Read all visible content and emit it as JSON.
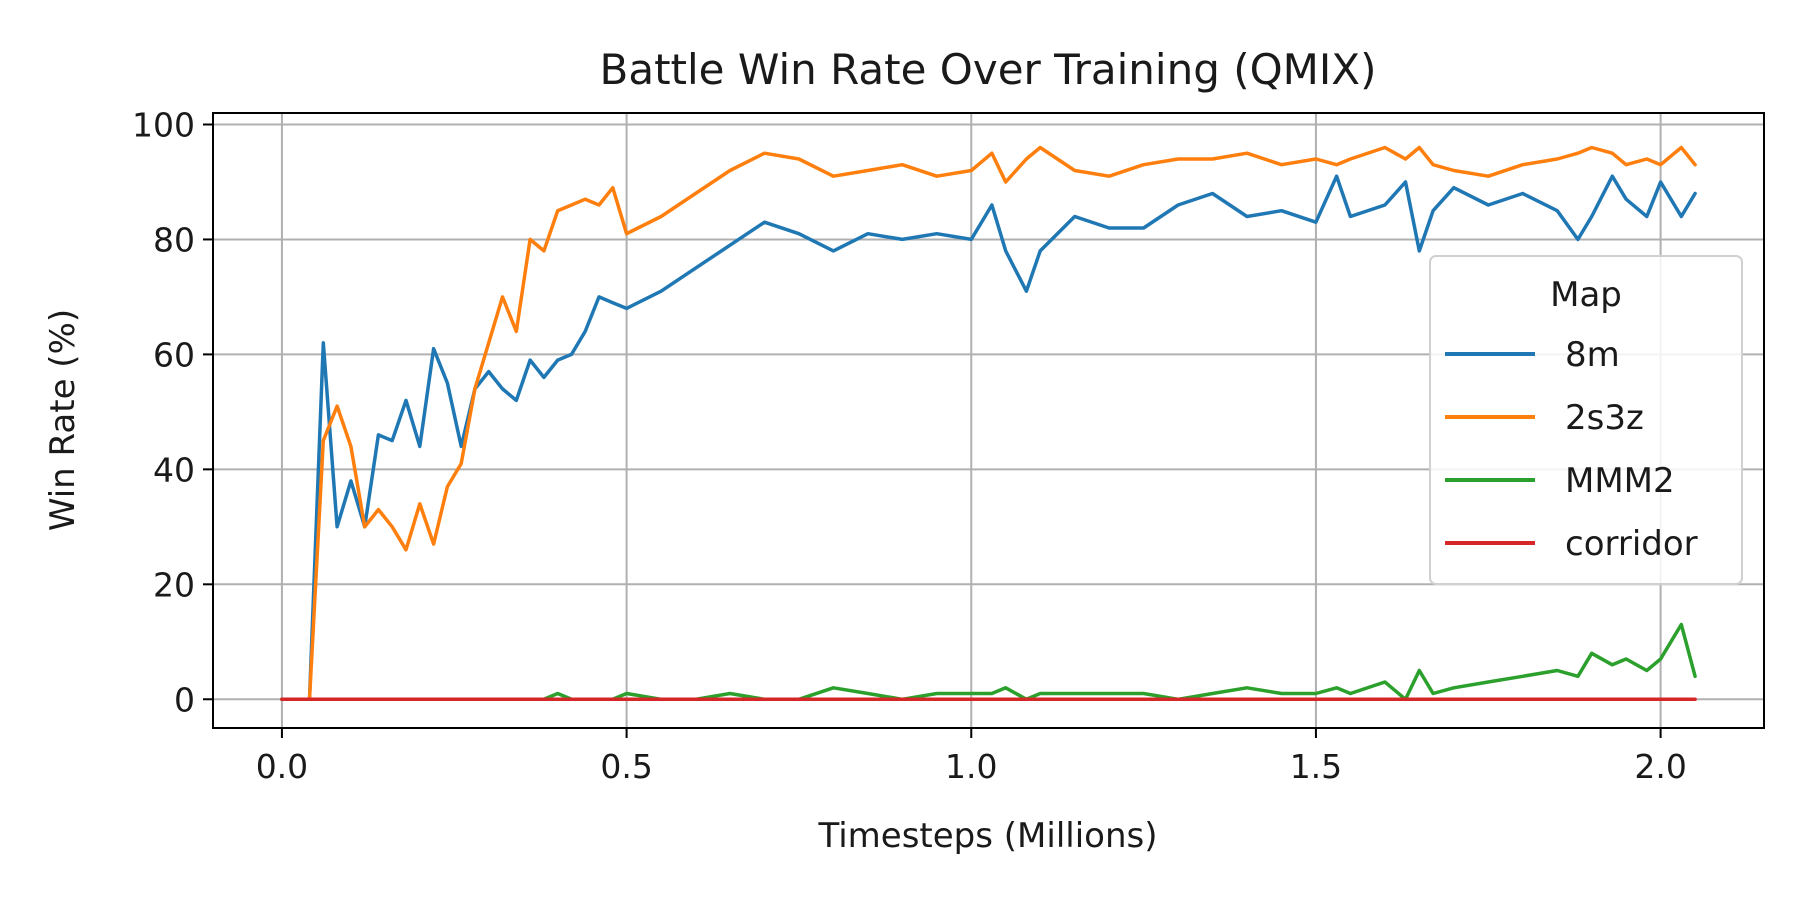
{
  "chart_data": {
    "type": "line",
    "title": "Battle Win Rate Over Training (QMIX)",
    "xlabel": "Timesteps (Millions)",
    "ylabel": "Win Rate (%)",
    "xlim": [
      -0.1,
      2.15
    ],
    "ylim": [
      -5,
      102
    ],
    "xticks": [
      0.0,
      0.5,
      1.0,
      1.5,
      2.0
    ],
    "xtick_labels": [
      "0.0",
      "0.5",
      "1.0",
      "1.5",
      "2.0"
    ],
    "yticks": [
      0,
      20,
      40,
      60,
      80,
      100
    ],
    "ytick_labels": [
      "0",
      "20",
      "40",
      "60",
      "80",
      "100"
    ],
    "grid": true,
    "legend": {
      "title": "Map",
      "position": "center-right"
    },
    "x": [
      0.0,
      0.04,
      0.06,
      0.08,
      0.1,
      0.12,
      0.14,
      0.16,
      0.18,
      0.2,
      0.22,
      0.24,
      0.26,
      0.28,
      0.3,
      0.32,
      0.34,
      0.36,
      0.38,
      0.4,
      0.42,
      0.44,
      0.46,
      0.48,
      0.5,
      0.55,
      0.6,
      0.65,
      0.7,
      0.75,
      0.8,
      0.85,
      0.9,
      0.95,
      1.0,
      1.03,
      1.05,
      1.08,
      1.1,
      1.15,
      1.2,
      1.25,
      1.3,
      1.35,
      1.4,
      1.45,
      1.5,
      1.53,
      1.55,
      1.6,
      1.63,
      1.65,
      1.67,
      1.7,
      1.75,
      1.8,
      1.85,
      1.88,
      1.9,
      1.93,
      1.95,
      1.98,
      2.0,
      2.03,
      2.05
    ],
    "series": [
      {
        "name": "8m",
        "color": "#1f77b4",
        "values": [
          0,
          0,
          62,
          30,
          38,
          30,
          46,
          45,
          52,
          44,
          61,
          55,
          44,
          54,
          57,
          54,
          52,
          59,
          56,
          59,
          60,
          64,
          70,
          69,
          68,
          71,
          75,
          79,
          83,
          81,
          78,
          81,
          80,
          81,
          80,
          86,
          78,
          71,
          78,
          84,
          82,
          82,
          86,
          88,
          84,
          85,
          83,
          91,
          84,
          86,
          90,
          78,
          85,
          89,
          86,
          88,
          85,
          80,
          84,
          91,
          87,
          84,
          90,
          84,
          88
        ]
      },
      {
        "name": "2s3z",
        "color": "#ff7f0e",
        "values": [
          0,
          0,
          45,
          51,
          44,
          30,
          33,
          30,
          26,
          34,
          27,
          37,
          41,
          54,
          62,
          70,
          64,
          80,
          78,
          85,
          86,
          87,
          86,
          89,
          81,
          84,
          88,
          92,
          95,
          94,
          91,
          92,
          93,
          91,
          92,
          95,
          90,
          94,
          96,
          92,
          91,
          93,
          94,
          94,
          95,
          93,
          94,
          93,
          94,
          96,
          94,
          96,
          93,
          92,
          91,
          93,
          94,
          95,
          96,
          95,
          93,
          94,
          93,
          96,
          93
        ]
      },
      {
        "name": "MMM2",
        "color": "#2ca02c",
        "values": [
          0,
          0,
          0,
          0,
          0,
          0,
          0,
          0,
          0,
          0,
          0,
          0,
          0,
          0,
          0,
          0,
          0,
          0,
          0,
          1,
          0,
          0,
          0,
          0,
          1,
          0,
          0,
          1,
          0,
          0,
          2,
          1,
          0,
          1,
          1,
          1,
          2,
          0,
          1,
          1,
          1,
          1,
          0,
          1,
          2,
          1,
          1,
          2,
          1,
          3,
          0,
          5,
          1,
          2,
          3,
          4,
          5,
          4,
          8,
          6,
          7,
          5,
          7,
          13,
          4
        ]
      },
      {
        "name": "corridor",
        "color": "#d62728",
        "values": [
          0,
          0,
          0,
          0,
          0,
          0,
          0,
          0,
          0,
          0,
          0,
          0,
          0,
          0,
          0,
          0,
          0,
          0,
          0,
          0,
          0,
          0,
          0,
          0,
          0,
          0,
          0,
          0,
          0,
          0,
          0,
          0,
          0,
          0,
          0,
          0,
          0,
          0,
          0,
          0,
          0,
          0,
          0,
          0,
          0,
          0,
          0,
          0,
          0,
          0,
          0,
          0,
          0,
          0,
          0,
          0,
          0,
          0,
          0,
          0,
          0,
          0,
          0,
          0,
          0
        ]
      }
    ]
  }
}
